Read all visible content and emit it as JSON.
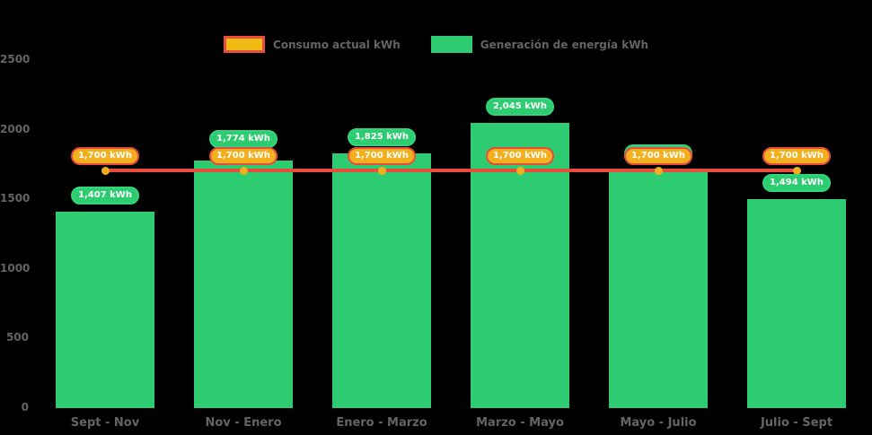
{
  "chart_data": {
    "type": "bar",
    "title": "",
    "categories": [
      "Sept - Nov",
      "Nov - Enero",
      "Enero - Marzo",
      "Marzo - Mayo",
      "Mayo - Julio",
      "Julio - Sept"
    ],
    "series": [
      {
        "name": "Consumo actual kWh",
        "type": "line",
        "values": [
          1700,
          1700,
          1700,
          1700,
          1700,
          1700
        ],
        "labels": [
          "1,700 kWh",
          "1,700 kWh",
          "1,700 kWh",
          "1,700 kWh",
          "1,700 kWh",
          "1,700 kWh"
        ]
      },
      {
        "name": "Generación de energía kWh",
        "type": "bar",
        "values": [
          1407,
          1774,
          1825,
          2045,
          1700,
          1494
        ],
        "labels": [
          "1,407 kWh",
          "1,774 kWh",
          "1,825 kWh",
          "2,045 kWh",
          "1,700 kWh",
          "1,494 kWh"
        ]
      }
    ],
    "ylim": [
      0,
      2500
    ],
    "yticks": [
      0,
      500,
      1000,
      1500,
      2000,
      2500
    ],
    "legend_position": "top",
    "grid": false
  },
  "colors": {
    "bar_fill": "#2ecc71",
    "bar_pill_border": "#31d67c",
    "line": "#e74c3c",
    "point": "#f5ae1d",
    "orange_pill_fill": "#f2b01e",
    "orange_pill_border": "#e74c3c",
    "legend_line_swatch_fill": "#f0bb14",
    "axis_text": "#646464",
    "pill_text": "#ffffff",
    "background": "#000000"
  }
}
